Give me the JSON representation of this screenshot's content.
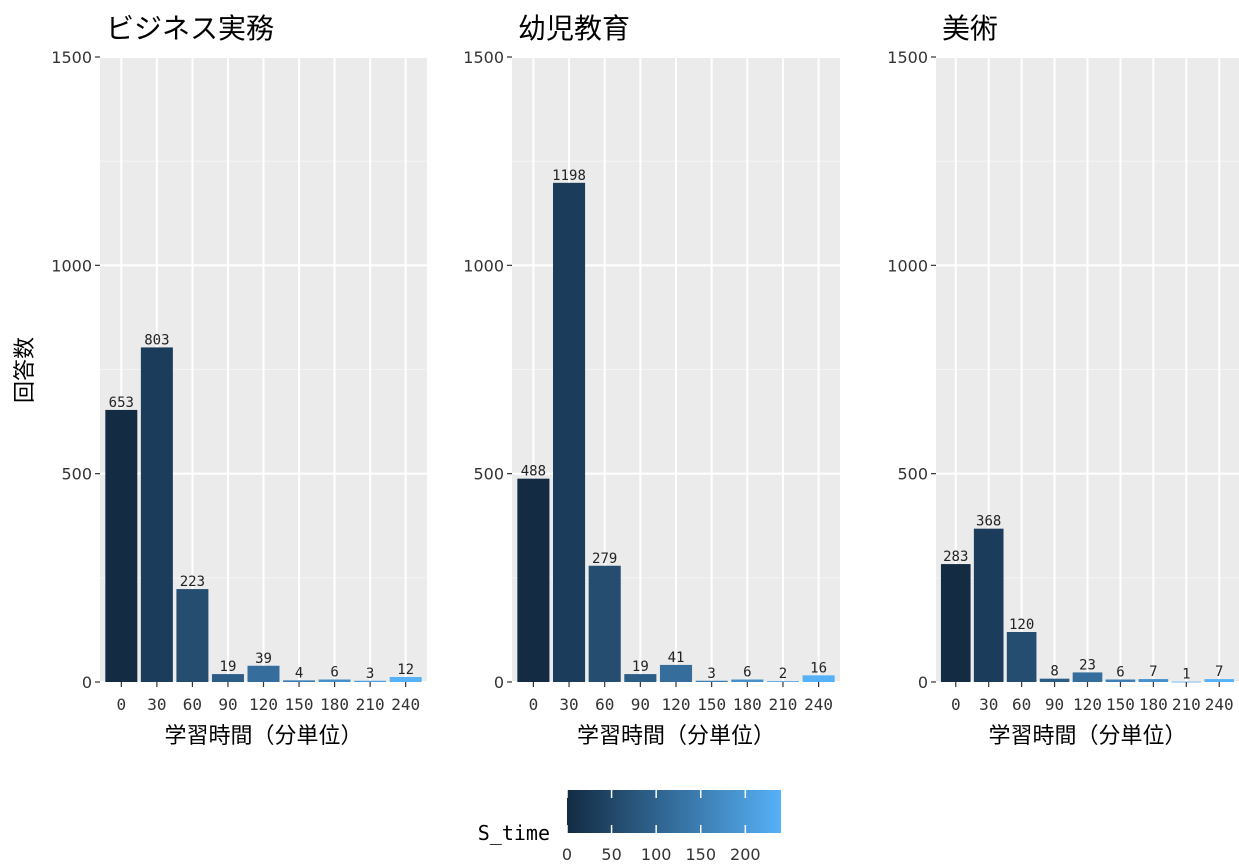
{
  "chart_data": {
    "type": "bar",
    "categories": [
      "0",
      "30",
      "60",
      "90",
      "120",
      "150",
      "180",
      "210",
      "240"
    ],
    "x_values": [
      0,
      30,
      60,
      90,
      120,
      150,
      180,
      210,
      240
    ],
    "ylabel": "回答数",
    "xlabel": "学習時間（分単位）",
    "ylim": [
      0,
      1500
    ],
    "yticks": [
      0,
      500,
      1000,
      1500
    ],
    "grid": true,
    "panels": [
      {
        "title": "ビジネス実務",
        "values": [
          653,
          803,
          223,
          19,
          39,
          4,
          6,
          3,
          12
        ]
      },
      {
        "title": "幼児教育",
        "values": [
          488,
          1198,
          279,
          19,
          41,
          3,
          6,
          2,
          16
        ]
      },
      {
        "title": "美術",
        "values": [
          283,
          368,
          120,
          8,
          23,
          6,
          7,
          1,
          7
        ]
      }
    ],
    "legend": {
      "title": "S_time",
      "placement": "bottom",
      "ticks": [
        0,
        50,
        100,
        150,
        200
      ],
      "range": [
        0,
        240
      ],
      "color_low": "#132b43",
      "color_high": "#56b1f7"
    }
  }
}
